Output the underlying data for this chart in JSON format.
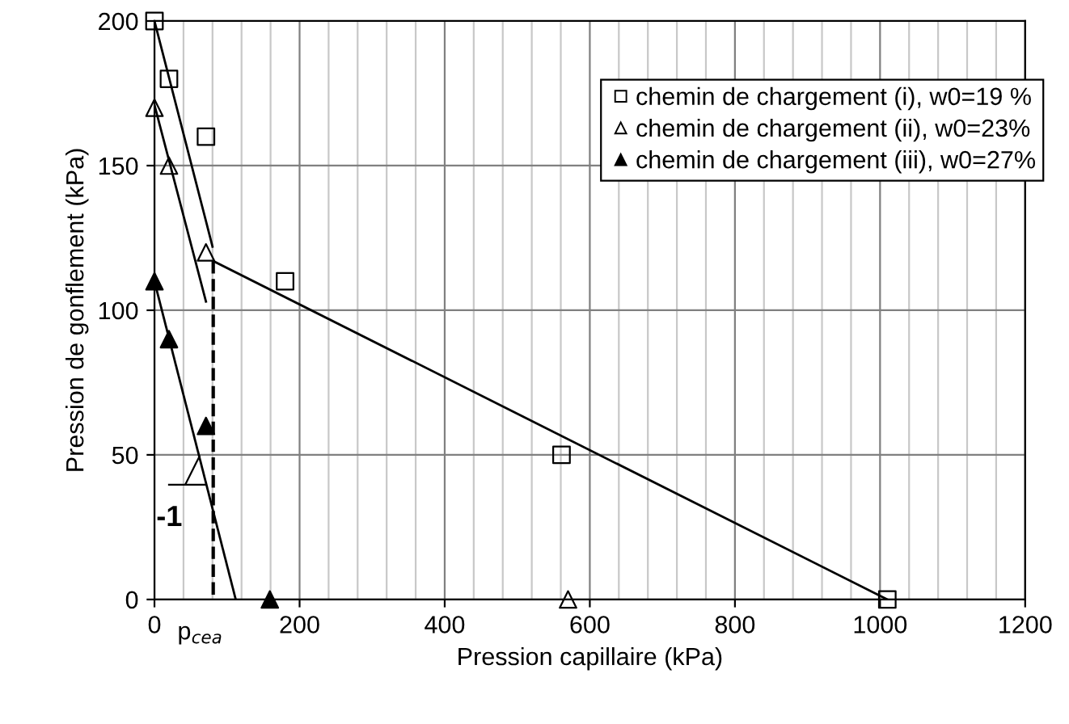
{
  "chart_data": {
    "type": "scatter",
    "xlabel": "Pression capillaire (kPa)",
    "ylabel": "Pression de gonflement (kPa)",
    "xlim": [
      0,
      1200
    ],
    "ylim": [
      0,
      200
    ],
    "xticks": [
      0,
      {
        "value": 40,
        "label": null
      },
      {
        "value": 80,
        "label": null
      },
      {
        "value": 120,
        "label": null
      },
      {
        "value": 160,
        "label": null
      },
      200,
      {
        "value": 240,
        "label": null
      },
      {
        "value": 280,
        "label": null
      },
      {
        "value": 320,
        "label": null
      },
      {
        "value": 360,
        "label": null
      },
      400,
      {
        "value": 440,
        "label": null
      },
      {
        "value": 480,
        "label": null
      },
      {
        "value": 520,
        "label": null
      },
      {
        "value": 560,
        "label": null
      },
      600,
      {
        "value": 640,
        "label": null
      },
      {
        "value": 680,
        "label": null
      },
      {
        "value": 720,
        "label": null
      },
      {
        "value": 760,
        "label": null
      },
      800,
      {
        "value": 840,
        "label": null
      },
      {
        "value": 880,
        "label": null
      },
      {
        "value": 920,
        "label": null
      },
      {
        "value": 960,
        "label": null
      },
      1000,
      {
        "value": 1040,
        "label": null
      },
      {
        "value": 1080,
        "label": null
      },
      {
        "value": 1120,
        "label": null
      },
      {
        "value": 1160,
        "label": null
      },
      1200
    ],
    "yticks": [
      0,
      50,
      100,
      150,
      200
    ],
    "grid": true,
    "legend": "top right",
    "series": [
      {
        "name": "chemin de chargement (i), w0=19 %",
        "marker": "square",
        "color": "#000000",
        "x": [
          0,
          20,
          71,
          180,
          561,
          1010
        ],
        "values": [
          200,
          180,
          160,
          110,
          50,
          0
        ]
      },
      {
        "name": "chemin de chargement (ii), w0=23%",
        "marker": "triangle",
        "color": "#000000",
        "x": [
          0,
          20,
          71,
          570
        ],
        "values": [
          170,
          150,
          120,
          0
        ]
      },
      {
        "name": "chemin de chargement (iii), w0=27%",
        "marker": "triangle",
        "color": "#000000",
        "x": [
          0,
          20,
          71,
          159
        ],
        "values": [
          110,
          90,
          60,
          0
        ]
      },
      {
        "type": "line",
        "line_style": "solid",
        "color": "#000000",
        "x": [
          0,
          80
        ],
        "values": [
          200,
          122
        ]
      },
      {
        "type": "line",
        "line_style": "solid",
        "color": "#000000",
        "x": [
          81,
          1010
        ],
        "values": [
          117,
          0
        ]
      },
      {
        "type": "line",
        "line_style": "solid",
        "color": "#000000",
        "x": [
          0,
          71
        ],
        "values": [
          171,
          103
        ]
      },
      {
        "type": "line",
        "line_style": "solid",
        "color": "#000000",
        "x": [
          0,
          112
        ],
        "values": [
          110,
          0
        ]
      },
      {
        "type": "line",
        "line_style": "dashed",
        "color": "#000000",
        "x": [
          81,
          81
        ],
        "values": [
          117,
          0
        ]
      }
    ],
    "annotations": [
      "-1",
      "p$_{cea}$"
    ]
  }
}
